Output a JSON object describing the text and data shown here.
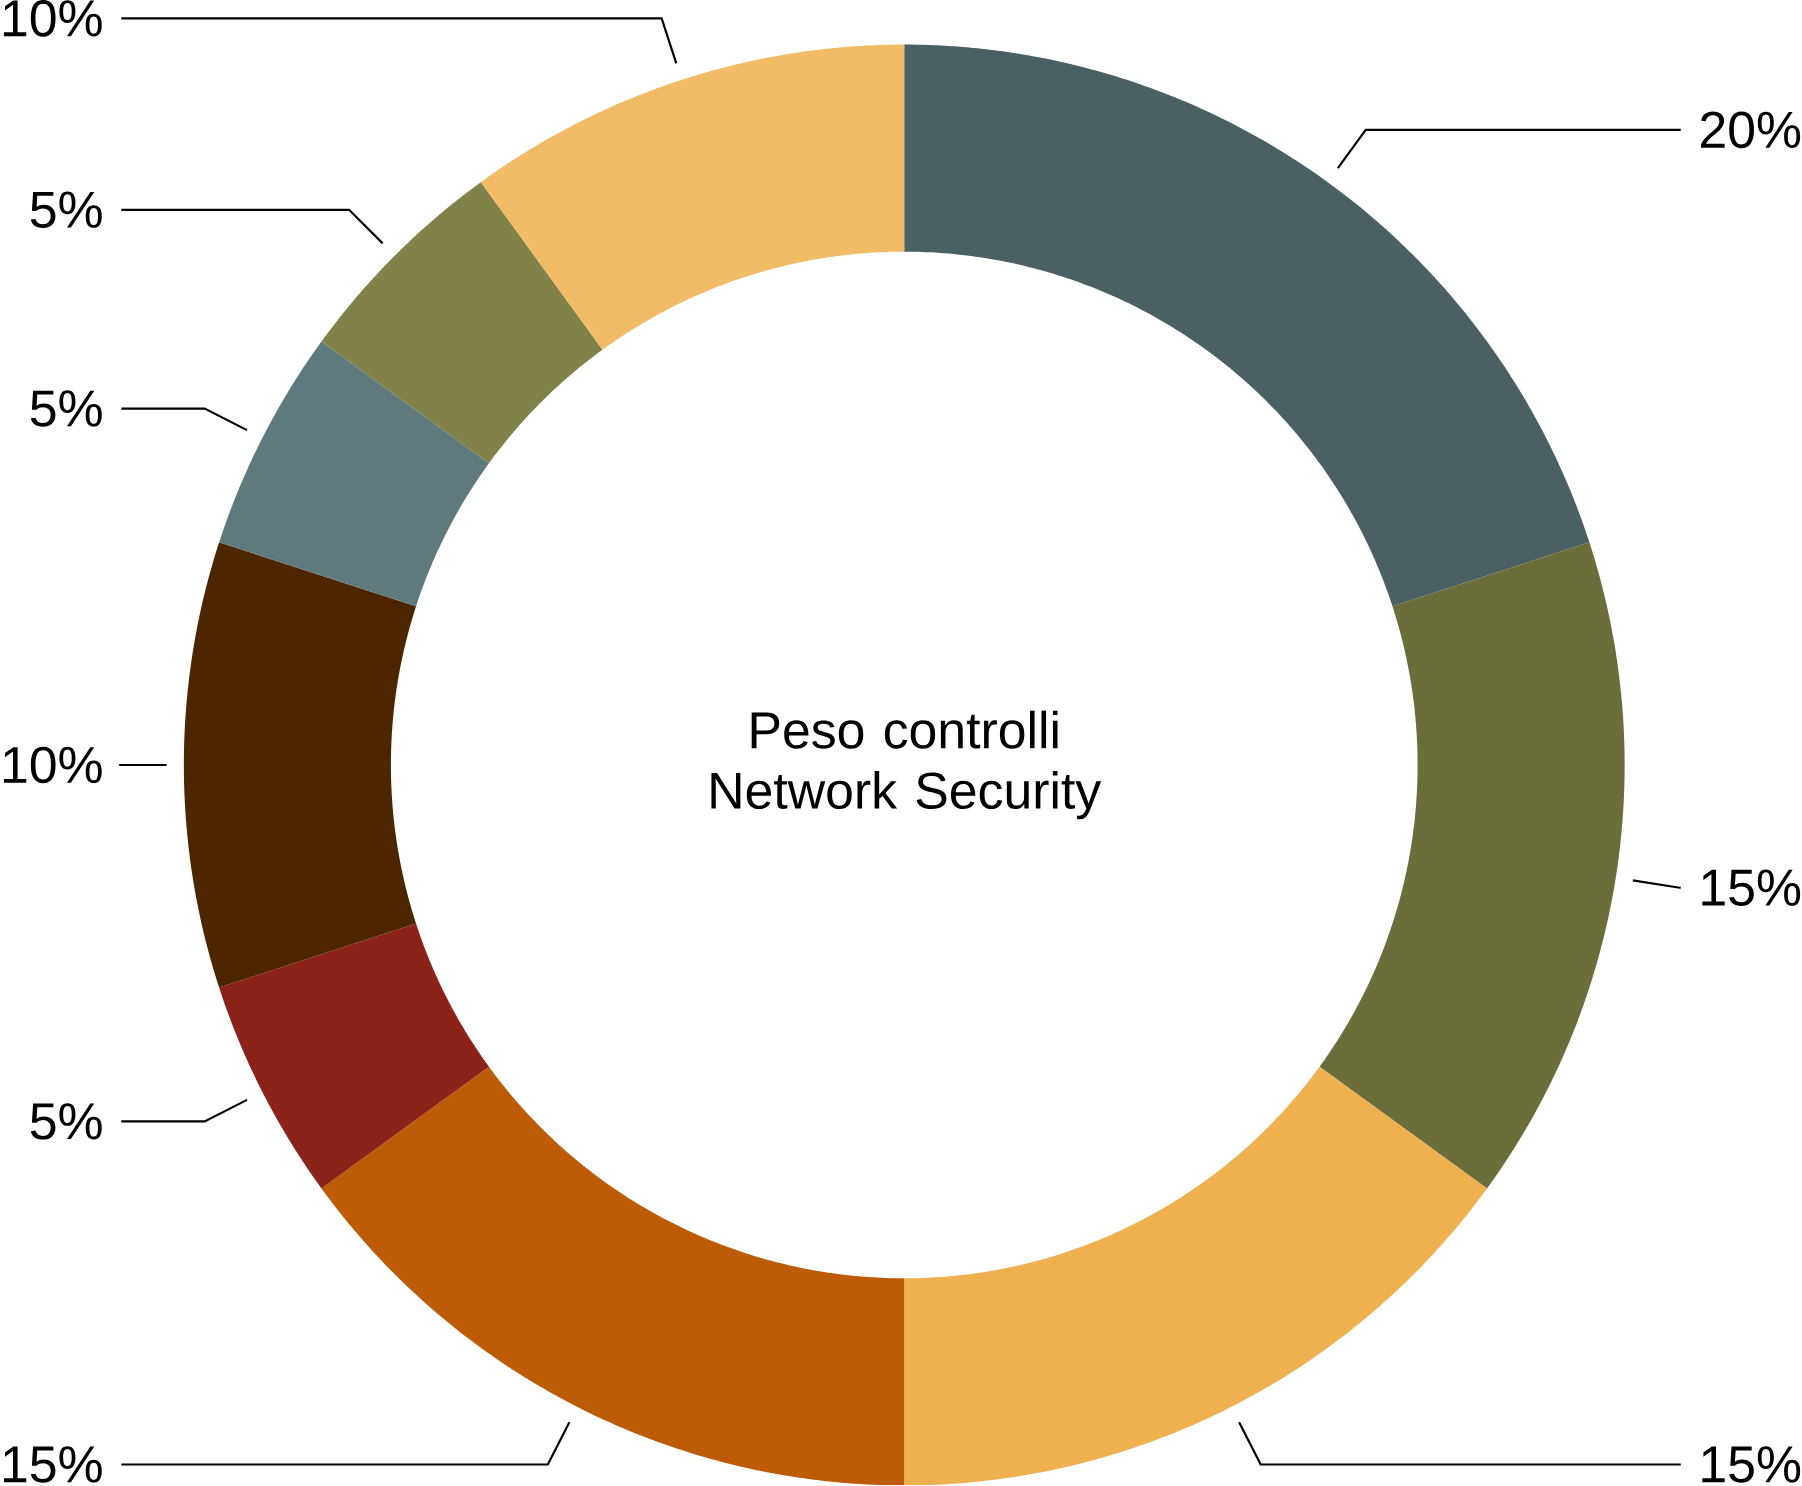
{
  "chart_data": {
    "type": "donut",
    "title": "Peso controlli Network Security",
    "categories": [
      null,
      null,
      null,
      null,
      null,
      null,
      null,
      null,
      null
    ],
    "values": [
      20,
      15,
      15,
      15,
      5,
      10,
      5,
      5,
      10
    ],
    "colors": [
      "#4a6062",
      "#6b6e3a",
      "#efb050",
      "#bd5b07",
      "#8c231b",
      "#4d2600",
      "#5e7a7c",
      "#80824a",
      "#f2bc66"
    ],
    "value_labels": [
      "20%",
      "15%",
      "15%",
      "15%",
      "5%",
      "10%",
      "5%",
      "5%",
      "10%"
    ]
  }
}
